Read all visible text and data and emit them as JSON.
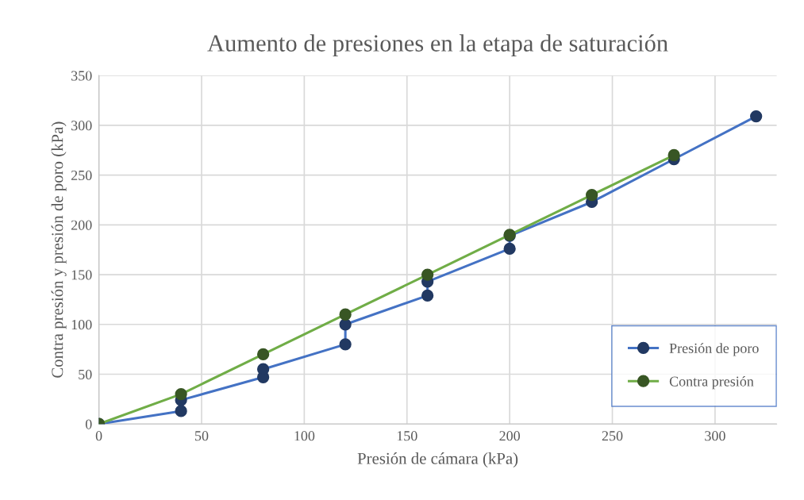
{
  "chart_data": {
    "type": "line",
    "title": "Aumento de presiones en la etapa de saturación",
    "xlabel": "Presión de cámara (kPa)",
    "ylabel": "Contra presión y presión de poro (kPa)",
    "series": [
      {
        "name": "Presión de poro",
        "color": "#4472c4",
        "x": [
          0,
          40,
          40,
          80,
          80,
          120,
          120,
          160,
          160,
          200,
          200,
          240,
          280,
          320
        ],
        "values": [
          0,
          13,
          24,
          47,
          55,
          80,
          100,
          129,
          143,
          176,
          189,
          223,
          266,
          309
        ]
      },
      {
        "name": "Contra presión",
        "color": "#70ad47",
        "x": [
          0,
          40,
          80,
          120,
          160,
          200,
          240,
          280
        ],
        "values": [
          0,
          30,
          70,
          110,
          150,
          190,
          230,
          270
        ]
      }
    ],
    "xlim": [
      0,
      330
    ],
    "xticks": [
      0,
      50,
      100,
      150,
      200,
      250,
      300
    ],
    "ylim": [
      0,
      350
    ],
    "yticks": [
      0,
      50,
      100,
      150,
      200,
      250,
      300,
      350
    ],
    "grid": true,
    "legend": "bottom right",
    "marker": "circle",
    "line_style": "solid"
  }
}
